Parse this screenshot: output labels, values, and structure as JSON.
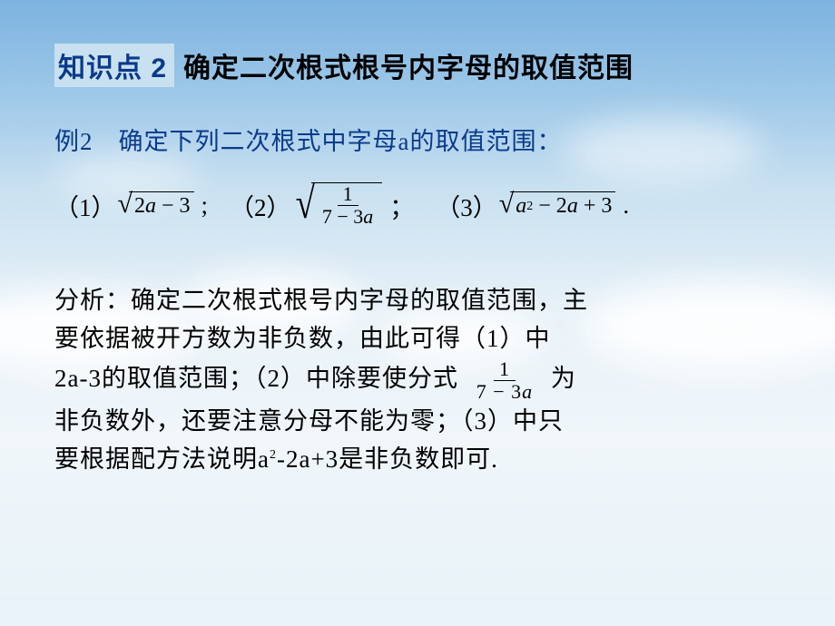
{
  "colors": {
    "title_box_bg": "#c8e0f0",
    "title_box_fg": "#0a3a8a",
    "title_fg": "#000000",
    "example_fg": "#0a3a8a",
    "body_fg": "#000000",
    "bg_gradient_top": "#7db3e0",
    "bg_gradient_mid": "#e8f2f8",
    "bg_gradient_bottom": "#e8f2f8"
  },
  "typography": {
    "title_fontsize_pt": 22,
    "body_fontsize_pt": 20,
    "font_family_heading": "SimHei",
    "font_family_body": "SimSun",
    "font_family_math": "Times New Roman"
  },
  "header": {
    "kp_label": "知识点 2",
    "title": "确定二次根式根号内字母的取值范围"
  },
  "example": {
    "lead": "例2　确定下列二次根式中字母a的取值范围：",
    "items": [
      {
        "num": "（1）",
        "radicand_plain": "2a − 3",
        "after": ";"
      },
      {
        "num": "（2）",
        "frac_num": "1",
        "frac_den_plain": "7 − 3a",
        "after": "；"
      },
      {
        "num": "（3）",
        "radicand_plain": "a² − 2a + 3",
        "after": "."
      }
    ]
  },
  "analysis": {
    "label": "分析：",
    "line1": "确定二次根式根号内字母的取值范围，主",
    "line2": "要依据被开方数为非负数，由此可得（1）中",
    "line3_pre": "2a-3的取值范围；（2）中除要使分式 ",
    "line3_frac_num": "1",
    "line3_frac_den_plain": "7 − 3a",
    "line3_post": " 为",
    "line4": "非负数外，还要注意分母不能为零；（3）中只",
    "line5_pre": "要根据配方法说明a",
    "line5_sup": "2",
    "line5_post": "-2a+3是非负数即可."
  }
}
